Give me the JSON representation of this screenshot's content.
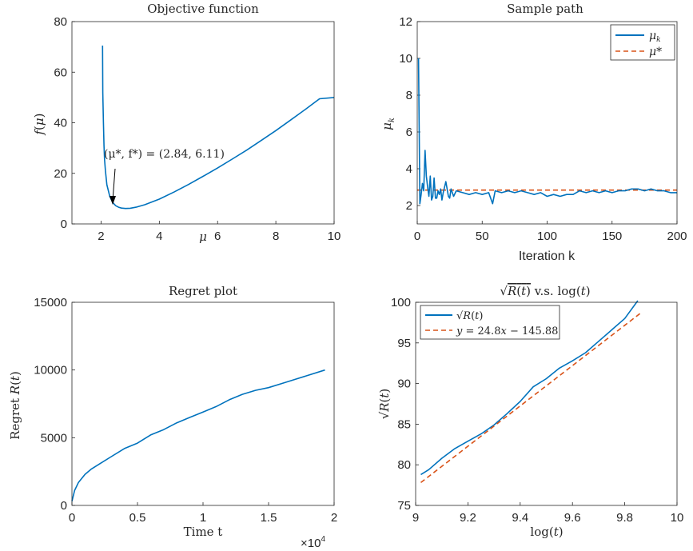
{
  "colors": {
    "blue": "#0072BD",
    "orange": "#D95319",
    "axis": "#262626"
  },
  "chart_data": [
    {
      "type": "line",
      "title": "Objective function",
      "xlabel": "μ",
      "ylabel": "f(μ)",
      "xlim": [
        1,
        10
      ],
      "ylim": [
        0,
        80
      ],
      "xticks": [
        2,
        4,
        6,
        8,
        10
      ],
      "yticks": [
        0,
        20,
        40,
        60,
        80
      ],
      "x": [
        2.05,
        2.06,
        2.08,
        2.1,
        2.12,
        2.15,
        2.2,
        2.3,
        2.4,
        2.5,
        2.6,
        2.7,
        2.84,
        3.0,
        3.2,
        3.5,
        4.0,
        4.5,
        5.0,
        5.5,
        6.0,
        6.5,
        7.0,
        7.5,
        8.0,
        8.5,
        9.0,
        9.5,
        10.0
      ],
      "series": [
        {
          "values": [
            70.5,
            52.0,
            40.0,
            31.0,
            25.5,
            21.0,
            15.5,
            10.8,
            8.5,
            7.2,
            6.6,
            6.25,
            6.11,
            6.2,
            6.6,
            7.6,
            9.8,
            12.6,
            15.6,
            18.8,
            22.1,
            25.6,
            29.2,
            33.0,
            36.9,
            41.0,
            45.2,
            49.5,
            50.0
          ]
        }
      ],
      "annotation": {
        "text": "(μ*, f*) = (2.84, 6.11)",
        "point": [
          2.84,
          6.11
        ]
      }
    },
    {
      "type": "line",
      "title": "Sample path",
      "xlabel": "Iteration k",
      "ylabel": "μk",
      "xlim": [
        0,
        200
      ],
      "ylim": [
        1,
        12
      ],
      "xticks": [
        0,
        50,
        100,
        150,
        200
      ],
      "yticks": [
        2,
        4,
        6,
        8,
        10,
        12
      ],
      "legend": {
        "placement": "top-right",
        "entries": [
          "μk",
          "μ*"
        ]
      },
      "x": [
        1,
        2,
        3,
        4,
        5,
        6,
        7,
        8,
        9,
        10,
        11,
        12,
        13,
        14,
        15,
        16,
        17,
        18,
        19,
        20,
        22,
        24,
        25,
        26,
        28,
        30,
        35,
        40,
        45,
        50,
        55,
        58,
        60,
        65,
        70,
        75,
        80,
        85,
        90,
        95,
        100,
        105,
        110,
        115,
        120,
        125,
        130,
        135,
        140,
        145,
        150,
        155,
        160,
        165,
        170,
        175,
        180,
        185,
        190,
        195,
        200
      ],
      "series": [
        {
          "name": "μk",
          "values": [
            10.0,
            2.1,
            2.6,
            3.2,
            2.8,
            5.0,
            3.6,
            3.0,
            2.5,
            3.6,
            2.3,
            2.5,
            3.5,
            2.4,
            2.4,
            2.8,
            2.6,
            2.9,
            2.3,
            2.7,
            3.3,
            2.5,
            2.4,
            2.9,
            2.5,
            2.8,
            2.7,
            2.6,
            2.7,
            2.6,
            2.7,
            2.1,
            2.8,
            2.7,
            2.8,
            2.7,
            2.8,
            2.7,
            2.6,
            2.7,
            2.5,
            2.6,
            2.5,
            2.6,
            2.6,
            2.8,
            2.7,
            2.8,
            2.7,
            2.8,
            2.7,
            2.8,
            2.8,
            2.9,
            2.9,
            2.8,
            2.9,
            2.8,
            2.8,
            2.7,
            2.7
          ]
        },
        {
          "name": "μ*",
          "values": [
            2.84,
            2.84
          ],
          "x": [
            0,
            200
          ]
        }
      ]
    },
    {
      "type": "line",
      "title": "Regret plot",
      "xlabel": "Time t",
      "ylabel": "Regret R(t)",
      "xlim": [
        0,
        20000
      ],
      "ylim": [
        0,
        15000
      ],
      "xticks": [
        0,
        0.5,
        1,
        1.5,
        2
      ],
      "yticks": [
        0,
        5000,
        10000,
        15000
      ],
      "x_multiplier": "×10^4",
      "x": [
        0,
        200,
        500,
        1000,
        1500,
        2000,
        3000,
        4000,
        5000,
        6000,
        7000,
        8000,
        9000,
        10000,
        11000,
        12000,
        13000,
        14000,
        15000,
        16000,
        17000,
        18000,
        19300
      ],
      "series": [
        {
          "values": [
            300,
            1100,
            1700,
            2300,
            2700,
            3000,
            3600,
            4200,
            4600,
            5200,
            5600,
            6100,
            6500,
            6900,
            7300,
            7800,
            8200,
            8500,
            8700,
            9000,
            9300,
            9600,
            10000
          ]
        }
      ]
    },
    {
      "type": "line",
      "title": "√R(t) v.s. log(t)",
      "xlabel": "log(t)",
      "ylabel": "√R(t)",
      "xlim": [
        9,
        10
      ],
      "ylim": [
        75,
        100
      ],
      "xticks": [
        9,
        9.2,
        9.4,
        9.6,
        9.8,
        10
      ],
      "yticks": [
        75,
        80,
        85,
        90,
        95,
        100
      ],
      "legend": {
        "placement": "top-left",
        "entries": [
          "√R(t)",
          "y = 24.8x − 145.88"
        ]
      },
      "x": [
        9.02,
        9.05,
        9.1,
        9.15,
        9.2,
        9.25,
        9.3,
        9.35,
        9.4,
        9.45,
        9.5,
        9.55,
        9.6,
        9.65,
        9.7,
        9.75,
        9.8,
        9.85
      ],
      "series": [
        {
          "name": "√R(t)",
          "values": [
            78.8,
            79.4,
            80.8,
            82.0,
            82.9,
            83.8,
            84.9,
            86.3,
            87.8,
            89.6,
            90.6,
            91.9,
            92.8,
            93.8,
            95.2,
            96.6,
            98.0,
            100.2
          ]
        },
        {
          "name": "y = 24.8x − 145.88",
          "fit": {
            "slope": 24.8,
            "intercept": -145.88
          },
          "x": [
            9.02,
            9.86
          ]
        }
      ]
    }
  ]
}
